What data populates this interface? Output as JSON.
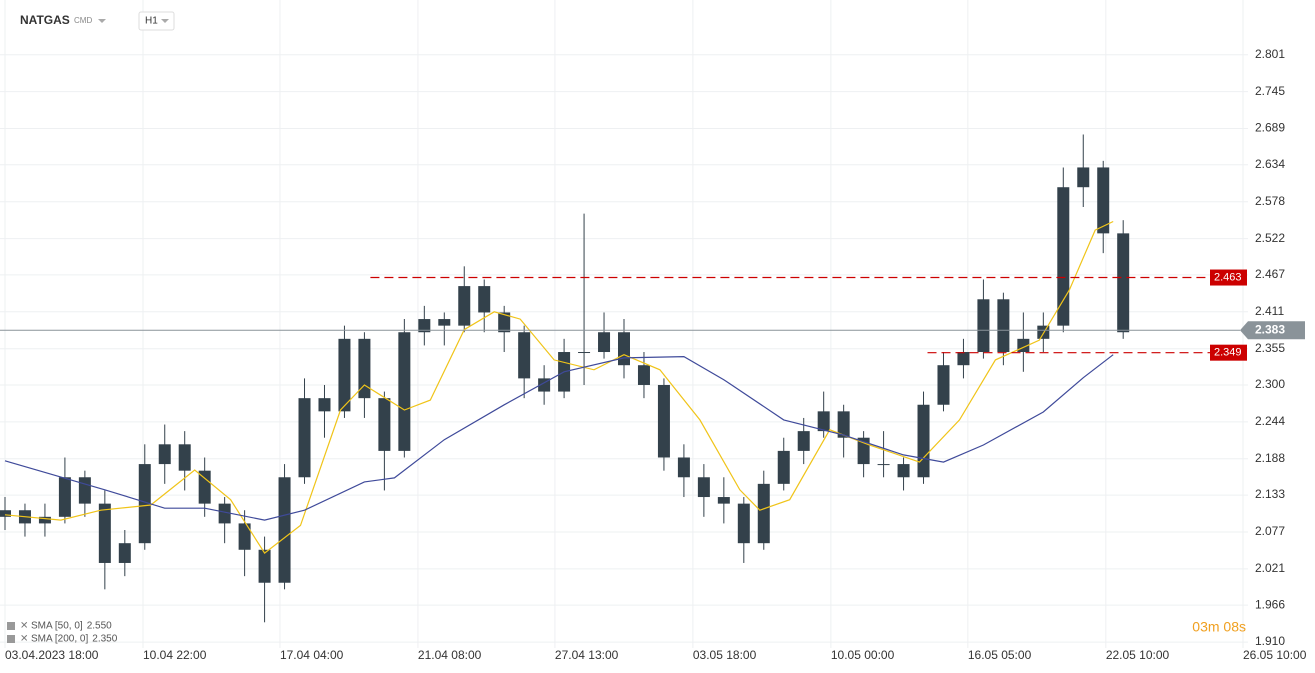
{
  "header": {
    "symbol": "NATGAS",
    "market": "CMD",
    "interval": "H1"
  },
  "chart_data": {
    "type": "candlestick",
    "ylim": [
      1.901,
      2.884
    ],
    "yticks": [
      2.801,
      2.745,
      2.689,
      2.634,
      2.578,
      2.522,
      2.467,
      2.411,
      2.355,
      {
        "value": 2.3,
        "label": "2.300"
      },
      2.244,
      2.188,
      2.133,
      2.077,
      2.021,
      1.966,
      {
        "value": 1.91,
        "label": "1.910"
      }
    ],
    "xlim": [
      0,
      62
    ],
    "xticks": [
      {
        "value": 0,
        "label": "03.04.2023  18:00"
      },
      {
        "value": 6.91,
        "label": "10.04  22:00"
      },
      {
        "value": 13.77,
        "label": "17.04  04:00"
      },
      {
        "value": 20.68,
        "label": "21.04  08:00"
      },
      {
        "value": 27.54,
        "label": "27.04  13:00"
      },
      {
        "value": 34.45,
        "label": "03.05  18:00"
      },
      {
        "value": 41.36,
        "label": "10.05  00:00"
      },
      {
        "value": 48.22,
        "label": "16.05  05:00"
      },
      {
        "value": 55.13,
        "label": "22.05  10:00"
      },
      {
        "value": 62,
        "label": "26.05  10:00"
      }
    ],
    "grid": true,
    "candle_color": "#33414b",
    "ohlc": [
      [
        2.1,
        2.13,
        2.08,
        2.11
      ],
      [
        2.11,
        2.12,
        2.07,
        2.09
      ],
      [
        2.09,
        2.12,
        2.07,
        2.1
      ],
      [
        2.1,
        2.19,
        2.09,
        2.16
      ],
      [
        2.16,
        2.17,
        2.1,
        2.12
      ],
      [
        2.12,
        2.14,
        1.99,
        2.03
      ],
      [
        2.03,
        2.08,
        2.01,
        2.06
      ],
      [
        2.06,
        2.21,
        2.05,
        2.18
      ],
      [
        2.18,
        2.24,
        2.15,
        2.21
      ],
      [
        2.21,
        2.23,
        2.14,
        2.17
      ],
      [
        2.17,
        2.19,
        2.1,
        2.12
      ],
      [
        2.12,
        2.13,
        2.06,
        2.09
      ],
      [
        2.09,
        2.11,
        2.01,
        2.05
      ],
      [
        2.05,
        2.07,
        1.94,
        2.0
      ],
      [
        2.0,
        2.18,
        1.99,
        2.16
      ],
      [
        2.16,
        2.31,
        2.15,
        2.28
      ],
      [
        2.28,
        2.3,
        2.22,
        2.26
      ],
      [
        2.26,
        2.39,
        2.25,
        2.37
      ],
      [
        2.37,
        2.38,
        2.25,
        2.28
      ],
      [
        2.28,
        2.29,
        2.14,
        2.2
      ],
      [
        2.2,
        2.4,
        2.19,
        2.38
      ],
      [
        2.38,
        2.42,
        2.36,
        2.4
      ],
      [
        2.4,
        2.41,
        2.36,
        2.39
      ],
      [
        2.39,
        2.48,
        2.38,
        2.45
      ],
      [
        2.45,
        2.46,
        2.38,
        2.41
      ],
      [
        2.41,
        2.42,
        2.35,
        2.38
      ],
      [
        2.38,
        2.39,
        2.28,
        2.31
      ],
      [
        2.31,
        2.33,
        2.27,
        2.29
      ],
      [
        2.29,
        2.37,
        2.28,
        2.35
      ],
      [
        2.35,
        2.56,
        2.3,
        2.35
      ],
      [
        2.35,
        2.41,
        2.34,
        2.38
      ],
      [
        2.38,
        2.4,
        2.31,
        2.33
      ],
      [
        2.33,
        2.35,
        2.28,
        2.3
      ],
      [
        2.3,
        2.31,
        2.17,
        2.19
      ],
      [
        2.19,
        2.21,
        2.13,
        2.16
      ],
      [
        2.16,
        2.18,
        2.1,
        2.13
      ],
      [
        2.13,
        2.16,
        2.09,
        2.12
      ],
      [
        2.12,
        2.13,
        2.03,
        2.06
      ],
      [
        2.06,
        2.17,
        2.05,
        2.15
      ],
      [
        2.15,
        2.22,
        2.14,
        2.2
      ],
      [
        2.2,
        2.25,
        2.18,
        2.23
      ],
      [
        2.23,
        2.29,
        2.22,
        2.26
      ],
      [
        2.26,
        2.27,
        2.19,
        2.22
      ],
      [
        2.22,
        2.23,
        2.16,
        2.18
      ],
      [
        2.18,
        2.23,
        2.16,
        2.18
      ],
      [
        2.18,
        2.19,
        2.14,
        2.16
      ],
      [
        2.16,
        2.29,
        2.15,
        2.27
      ],
      [
        2.27,
        2.35,
        2.26,
        2.33
      ],
      [
        2.33,
        2.37,
        2.31,
        2.35
      ],
      [
        2.35,
        2.46,
        2.34,
        2.43
      ],
      [
        2.43,
        2.44,
        2.33,
        2.35
      ],
      [
        2.35,
        2.41,
        2.32,
        2.37
      ],
      [
        2.37,
        2.41,
        2.35,
        2.39
      ],
      [
        2.39,
        2.63,
        2.38,
        2.6
      ],
      [
        2.6,
        2.68,
        2.57,
        2.63
      ],
      [
        2.63,
        2.64,
        2.5,
        2.53
      ],
      [
        2.53,
        2.55,
        2.37,
        2.38
      ]
    ],
    "series": [
      {
        "name": "SMA [50, 0]",
        "last_label": "2.550",
        "color": "#f0c419",
        "x": [
          0,
          2.8,
          4.8,
          7.3,
          9.5,
          11.3,
          13,
          14.8,
          16.8,
          18,
          20,
          21.3,
          23,
          24.5,
          25.8,
          27.5,
          29.5,
          31,
          32.8,
          34.8,
          36.8,
          37.8,
          39.3,
          41.3,
          43.3,
          45.8,
          47.8,
          49.6,
          51.8,
          53.3,
          54.6,
          55.5
        ],
        "values": [
          2.103,
          2.095,
          2.11,
          2.118,
          2.171,
          2.126,
          2.045,
          2.087,
          2.262,
          2.3,
          2.262,
          2.277,
          2.384,
          2.411,
          2.4,
          2.338,
          2.323,
          2.346,
          2.323,
          2.247,
          2.141,
          2.11,
          2.126,
          2.232,
          2.209,
          2.183,
          2.247,
          2.338,
          2.368,
          2.444,
          2.535,
          2.548
        ]
      },
      {
        "name": "SMA [200, 0]",
        "last_label": "2.350",
        "color": "#3f4a9a",
        "x": [
          0,
          5,
          8,
          10,
          13,
          15,
          18,
          19.5,
          22,
          25,
          28,
          31,
          34,
          36,
          39,
          42,
          45,
          47,
          49,
          52,
          54,
          55.5
        ],
        "values": [
          2.185,
          2.141,
          2.113,
          2.113,
          2.095,
          2.11,
          2.153,
          2.159,
          2.217,
          2.27,
          2.32,
          2.341,
          2.343,
          2.308,
          2.247,
          2.224,
          2.194,
          2.183,
          2.209,
          2.259,
          2.311,
          2.346
        ]
      }
    ],
    "levels": [
      {
        "value": 2.463,
        "from": 18.3,
        "color": "#cc0000"
      },
      {
        "value": 2.349,
        "from": 46.2,
        "color": "#cc0000"
      }
    ],
    "current_price": {
      "value": 2.383,
      "color": "#8a9399"
    },
    "timer": "03m 08s"
  }
}
